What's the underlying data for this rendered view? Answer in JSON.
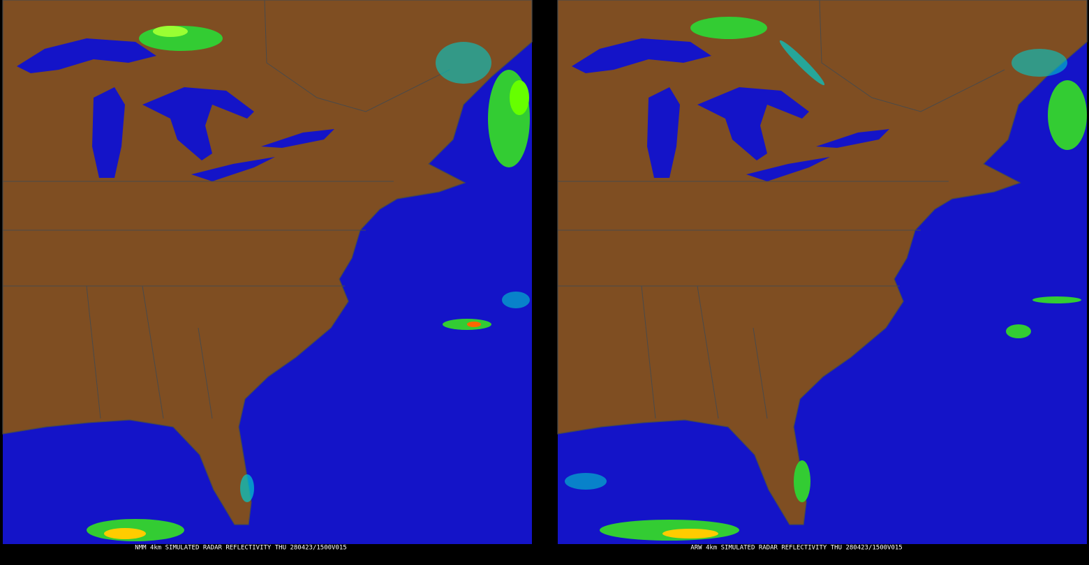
{
  "panels": [
    {
      "caption": "NMM 4km SIMULATED RADAR REFLECTIVITY THU 280423/1500V015"
    },
    {
      "caption": "ARW 4km SIMULATED RADAR REFLECTIVITY THU 280423/1500V015"
    }
  ]
}
